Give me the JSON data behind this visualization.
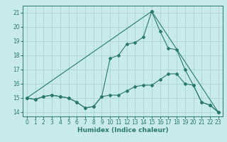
{
  "title": "",
  "xlabel": "Humidex (Indice chaleur)",
  "bg_color": "#c8eaea",
  "grid_color": "#aad4d4",
  "line_color": "#2a7a6a",
  "xlim": [
    -0.5,
    23.5
  ],
  "ylim": [
    13.7,
    21.5
  ],
  "xticks": [
    0,
    1,
    2,
    3,
    4,
    5,
    6,
    7,
    8,
    9,
    10,
    11,
    12,
    13,
    14,
    15,
    16,
    17,
    18,
    19,
    20,
    21,
    22,
    23
  ],
  "yticks": [
    14,
    15,
    16,
    17,
    18,
    19,
    20,
    21
  ],
  "lines": [
    {
      "x": [
        0,
        1,
        2,
        3,
        4,
        5,
        6,
        7,
        8,
        9,
        10,
        11,
        12,
        13,
        14,
        15,
        16,
        17,
        18,
        19,
        20,
        21,
        22,
        23
      ],
      "y": [
        15.0,
        14.9,
        15.1,
        15.2,
        15.1,
        15.0,
        14.7,
        14.3,
        14.4,
        15.1,
        15.2,
        15.2,
        15.5,
        15.8,
        15.9,
        15.9,
        16.3,
        16.7,
        16.7,
        16.0,
        15.9,
        14.7,
        14.5,
        14.0
      ]
    },
    {
      "x": [
        0,
        1,
        2,
        3,
        4,
        5,
        6,
        7,
        8,
        9,
        10,
        11,
        12,
        13,
        14,
        15,
        16,
        17,
        18,
        19,
        20,
        21,
        22,
        23
      ],
      "y": [
        15.0,
        14.9,
        15.1,
        15.2,
        15.1,
        15.0,
        14.7,
        14.3,
        14.4,
        15.1,
        17.8,
        18.0,
        18.8,
        18.9,
        19.3,
        21.1,
        19.7,
        18.5,
        18.4,
        17.0,
        15.9,
        14.7,
        14.5,
        14.0
      ]
    },
    {
      "x": [
        0,
        15,
        23
      ],
      "y": [
        15.0,
        21.1,
        14.0
      ]
    }
  ]
}
